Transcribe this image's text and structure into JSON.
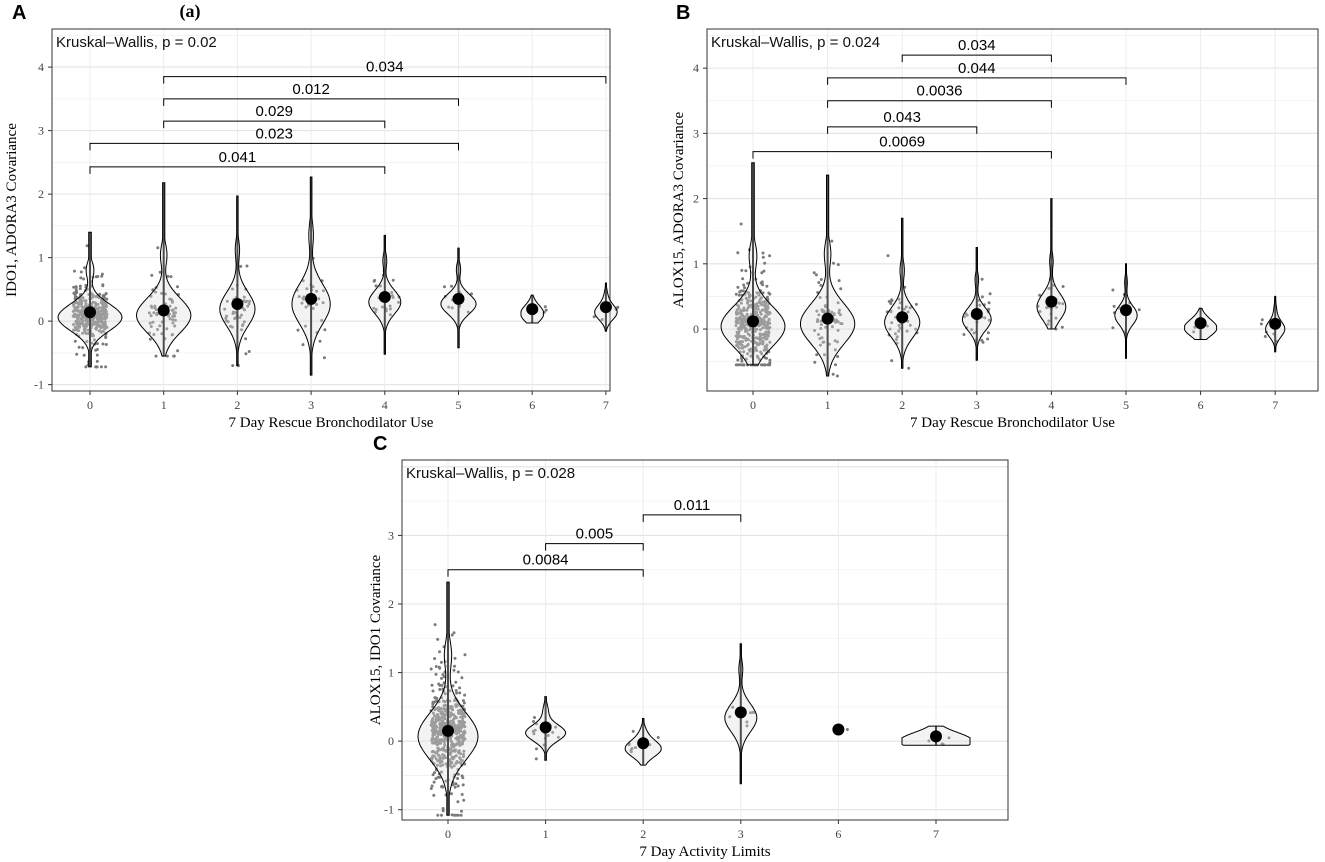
{
  "figure_title": "(a)",
  "chart_data": [
    {
      "panel": "A",
      "type": "violin",
      "title": "",
      "annotation": "Kruskal–Wallis, p = 0.02",
      "xlabel": "7 Day Rescue Bronchodilator Use",
      "ylabel": "IDO1, ADORA3 Covariance",
      "categories": [
        "0",
        "1",
        "2",
        "3",
        "4",
        "5",
        "6",
        "7"
      ],
      "ylim": [
        -1.1,
        4.6
      ],
      "yticks": [
        -1,
        0,
        1,
        2,
        3,
        4
      ],
      "mean_values": [
        0.14,
        0.17,
        0.27,
        0.35,
        0.38,
        0.35,
        0.19,
        0.22
      ],
      "range_min": [
        -0.72,
        -0.55,
        -0.7,
        -0.85,
        -0.52,
        -0.42,
        -0.03,
        -0.16
      ],
      "range_max": [
        1.4,
        2.18,
        1.97,
        2.27,
        1.35,
        1.15,
        0.41,
        0.6
      ],
      "violin_width": [
        1.0,
        0.85,
        0.55,
        0.6,
        0.5,
        0.55,
        0.35,
        0.35
      ],
      "point_counts": [
        420,
        70,
        45,
        30,
        22,
        14,
        4,
        7
      ],
      "comparisons": [
        {
          "from": "1",
          "to": "7",
          "p": "0.034",
          "y": 3.85
        },
        {
          "from": "1",
          "to": "5",
          "p": "0.012",
          "y": 3.5
        },
        {
          "from": "1",
          "to": "4",
          "p": "0.029",
          "y": 3.15
        },
        {
          "from": "0",
          "to": "5",
          "p": "0.023",
          "y": 2.8
        },
        {
          "from": "0",
          "to": "4",
          "p": "0.041",
          "y": 2.43
        }
      ]
    },
    {
      "panel": "B",
      "type": "violin",
      "title": "",
      "annotation": "Kruskal–Wallis, p = 0.024",
      "xlabel": "7 Day Rescue Bronchodilator Use",
      "ylabel": "ALOX15, ADORA3 Covariance",
      "categories": [
        "0",
        "1",
        "2",
        "3",
        "4",
        "5",
        "6",
        "7"
      ],
      "ylim": [
        -0.95,
        4.6
      ],
      "yticks": [
        -1,
        0,
        1,
        2,
        3,
        4
      ],
      "mean_values": [
        0.12,
        0.16,
        0.18,
        0.23,
        0.42,
        0.29,
        0.09,
        0.08
      ],
      "range_min": [
        -0.55,
        -0.72,
        -0.6,
        -0.48,
        0.0,
        -0.45,
        -0.16,
        -0.35
      ],
      "range_max": [
        2.55,
        2.36,
        1.7,
        1.25,
        2.0,
        1.0,
        0.32,
        0.5
      ],
      "violin_width": [
        1.0,
        0.85,
        0.55,
        0.45,
        0.45,
        0.35,
        0.5,
        0.3
      ],
      "point_counts": [
        420,
        70,
        45,
        30,
        22,
        14,
        4,
        7
      ],
      "comparisons": [
        {
          "from": "2",
          "to": "4",
          "p": "0.034",
          "y": 4.2
        },
        {
          "from": "1",
          "to": "5",
          "p": "0.044",
          "y": 3.85
        },
        {
          "from": "1",
          "to": "4",
          "p": "0.0036",
          "y": 3.5
        },
        {
          "from": "1",
          "to": "3",
          "p": "0.043",
          "y": 3.1
        },
        {
          "from": "0",
          "to": "4",
          "p": "0.0069",
          "y": 2.72
        }
      ]
    },
    {
      "panel": "C",
      "type": "violin",
      "title": "",
      "annotation": "Kruskal–Wallis, p = 0.028",
      "xlabel": "7 Day Activity Limits",
      "ylabel": "ALOX15, IDO1 Covariance",
      "categories": [
        "0",
        "1",
        "2",
        "3",
        "6",
        "7"
      ],
      "ylim": [
        -1.15,
        4.1
      ],
      "yticks": [
        -1,
        0,
        1,
        2,
        3
      ],
      "mean_values": [
        0.15,
        0.2,
        -0.03,
        0.42,
        0.17,
        0.07
      ],
      "range_min": [
        -1.08,
        -0.28,
        -0.35,
        -0.62,
        0.17,
        -0.06
      ],
      "range_max": [
        2.32,
        0.65,
        0.33,
        1.42,
        0.17,
        0.22
      ],
      "violin_width": [
        0.75,
        0.5,
        0.45,
        0.4,
        0.0,
        0.85
      ],
      "point_counts": [
        520,
        18,
        9,
        7,
        1,
        4
      ],
      "comparisons": [
        {
          "from": "2",
          "to": "3",
          "p": "0.011",
          "y": 3.3
        },
        {
          "from": "1",
          "to": "2",
          "p": "0.005",
          "y": 2.88
        },
        {
          "from": "0",
          "to": "2",
          "p": "0.0084",
          "y": 2.5
        }
      ]
    }
  ]
}
